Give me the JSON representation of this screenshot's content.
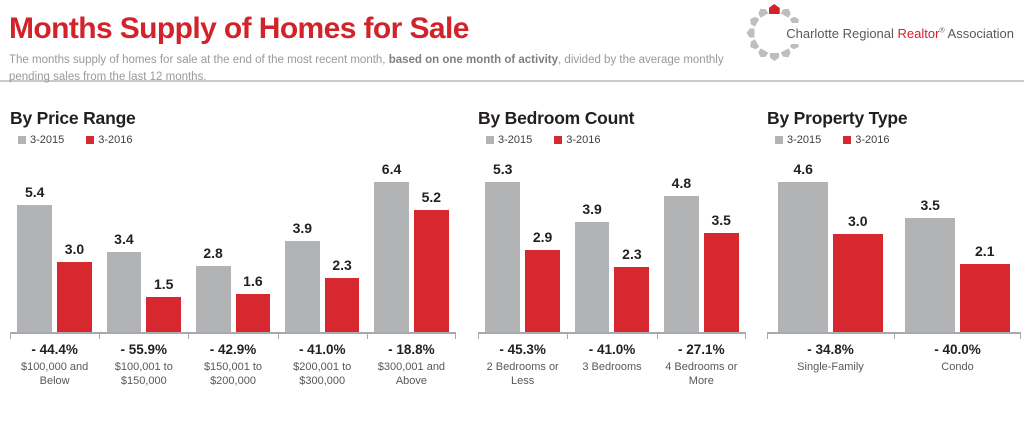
{
  "header": {
    "title": "Months Supply of Homes for Sale",
    "subtitle_pre": "The months supply of homes for sale at the end of the most recent month, ",
    "subtitle_bold": "based on one month of activity",
    "subtitle_post": ", divided by the average monthly pending sales from the last 12 months.",
    "logo": {
      "text_pre": "Charlotte Regional ",
      "text_accent": "Realtor",
      "text_sup": "®",
      "text_post": " Association"
    }
  },
  "colors": {
    "title_red": "#d2232a",
    "bar_2015_gray": "#b1b3b4",
    "bar_2016_red": "#d7282f",
    "axis_gray": "#a7a9ac"
  },
  "chart_data": [
    {
      "type": "bar",
      "title": "By Price Range",
      "categories": [
        "$100,000 and Below",
        "$100,001 to $150,000",
        "$150,001 to $200,000",
        "$200,001 to $300,000",
        "$300,001 and Above"
      ],
      "series": [
        {
          "name": "3-2015",
          "values": [
            5.4,
            3.4,
            2.8,
            3.9,
            6.4
          ]
        },
        {
          "name": "3-2016",
          "values": [
            3.0,
            1.5,
            1.6,
            2.3,
            5.2
          ]
        }
      ],
      "change_labels": [
        "- 44.4%",
        "- 55.9%",
        "- 42.9%",
        "- 41.0%",
        "- 18.8%"
      ],
      "ylabel": "",
      "xlabel": "",
      "ylim": [
        0,
        7
      ],
      "grid": false,
      "legend_position": "top-left",
      "value_labels": true
    },
    {
      "type": "bar",
      "title": "By Bedroom Count",
      "categories": [
        "2 Bedrooms or Less",
        "3 Bedrooms",
        "4 Bedrooms or More"
      ],
      "series": [
        {
          "name": "3-2015",
          "values": [
            5.3,
            3.9,
            4.8
          ]
        },
        {
          "name": "3-2016",
          "values": [
            2.9,
            2.3,
            3.5
          ]
        }
      ],
      "change_labels": [
        "- 45.3%",
        "- 41.0%",
        "- 27.1%"
      ],
      "ylabel": "",
      "xlabel": "",
      "ylim": [
        0,
        6
      ],
      "grid": false,
      "legend_position": "top-left",
      "value_labels": true
    },
    {
      "type": "bar",
      "title": "By Property Type",
      "categories": [
        "Single-Family",
        "Condo"
      ],
      "series": [
        {
          "name": "3-2015",
          "values": [
            4.6,
            3.5
          ]
        },
        {
          "name": "3-2016",
          "values": [
            3.0,
            2.1
          ]
        }
      ],
      "change_labels": [
        "- 34.8%",
        "- 40.0%"
      ],
      "ylabel": "",
      "xlabel": "",
      "ylim": [
        0,
        5
      ],
      "grid": false,
      "legend_position": "top-left",
      "value_labels": true
    }
  ]
}
